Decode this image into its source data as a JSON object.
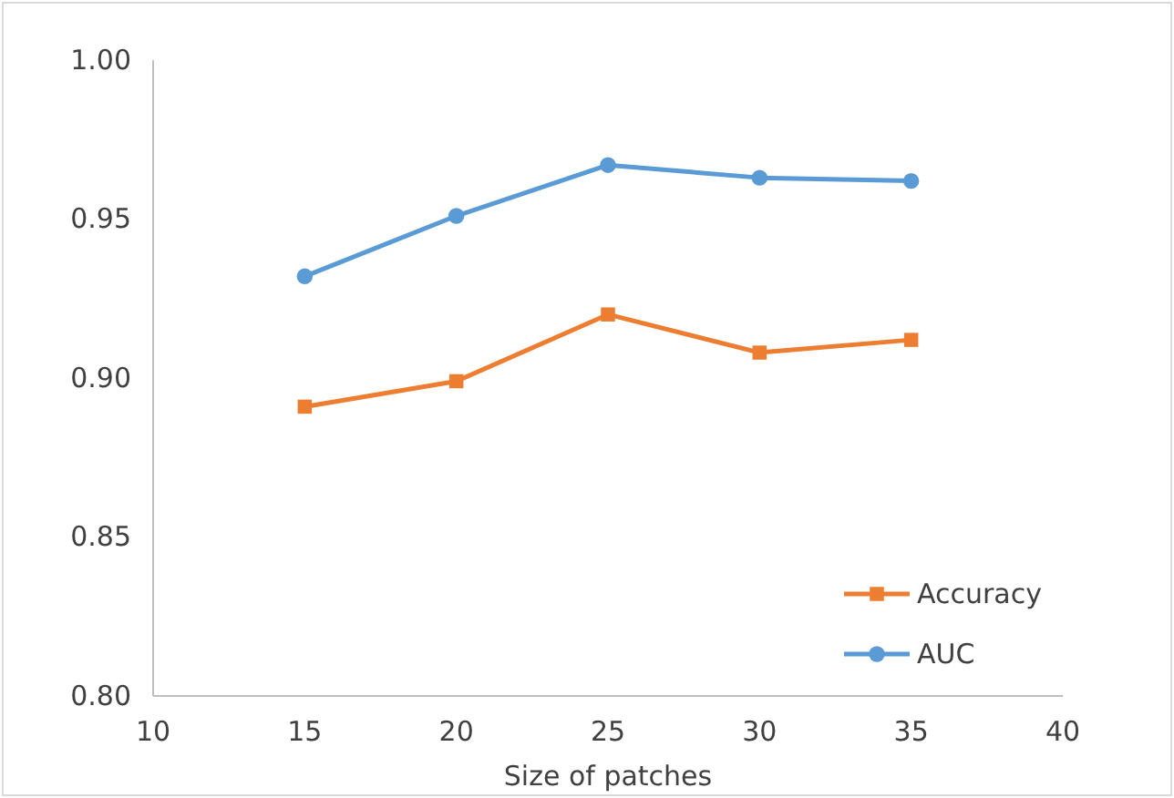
{
  "chart_data": {
    "type": "line",
    "xlabel": "Size of patches",
    "x": [
      15,
      20,
      25,
      30,
      35
    ],
    "series": [
      {
        "name": "Accuracy",
        "color": "#ed7d31",
        "marker": "square",
        "values": [
          0.891,
          0.899,
          0.92,
          0.908,
          0.912
        ]
      },
      {
        "name": "AUC",
        "color": "#5b9bd5",
        "marker": "circle",
        "values": [
          0.932,
          0.951,
          0.967,
          0.963,
          0.962
        ]
      }
    ],
    "xlim": [
      10,
      40
    ],
    "xticks": [
      10,
      15,
      20,
      25,
      30,
      35,
      40
    ],
    "ylim": [
      0.8,
      1.0
    ],
    "yticks": [
      {
        "value": 0.8,
        "label": "0.80"
      },
      {
        "value": 0.85,
        "label": "0.85"
      },
      {
        "value": 0.9,
        "label": "0.90"
      },
      {
        "value": 0.95,
        "label": "0.95"
      },
      {
        "value": 1.0,
        "label": "1.00"
      }
    ],
    "grid": false,
    "legend": "bottom right",
    "line_style": "solid"
  }
}
